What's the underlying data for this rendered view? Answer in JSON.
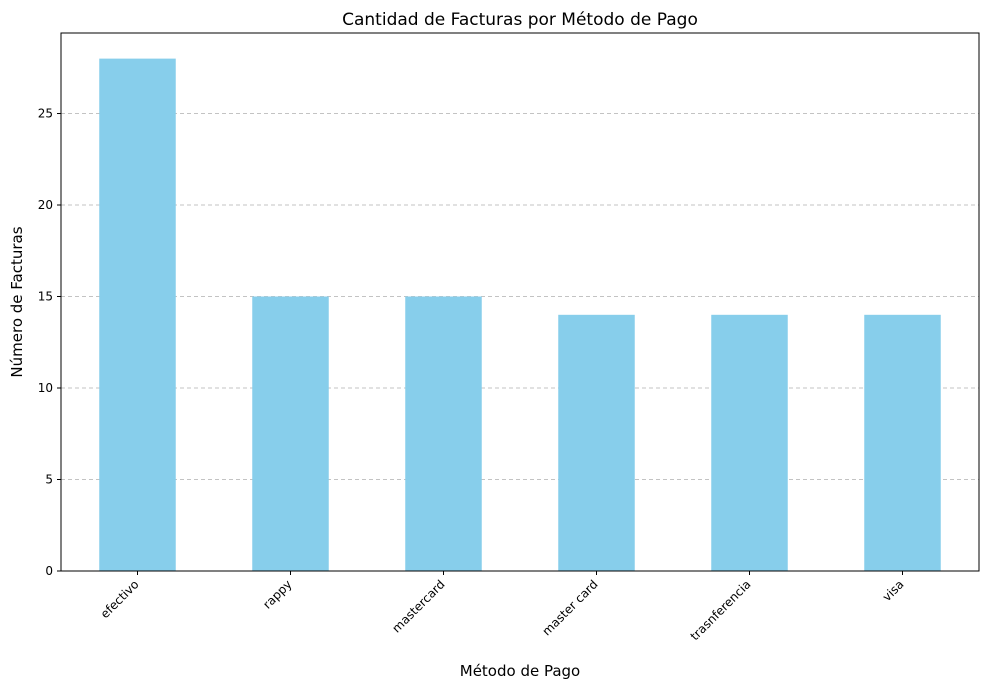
{
  "chart_data": {
    "type": "bar",
    "title": "Cantidad de Facturas por Método de Pago",
    "xlabel": "Método de Pago",
    "ylabel": "Número de Facturas",
    "categories": [
      "efectivo",
      "rappy",
      "mastercard",
      "master card",
      "trasnferencia",
      "visa"
    ],
    "values": [
      28,
      15,
      15,
      14,
      14,
      14
    ],
    "ylim": [
      0,
      29.4
    ],
    "yticks": [
      0,
      5,
      10,
      15,
      20,
      25
    ],
    "grid": "y-dashed",
    "bar_color": "#87ceeb",
    "legend": "none"
  }
}
